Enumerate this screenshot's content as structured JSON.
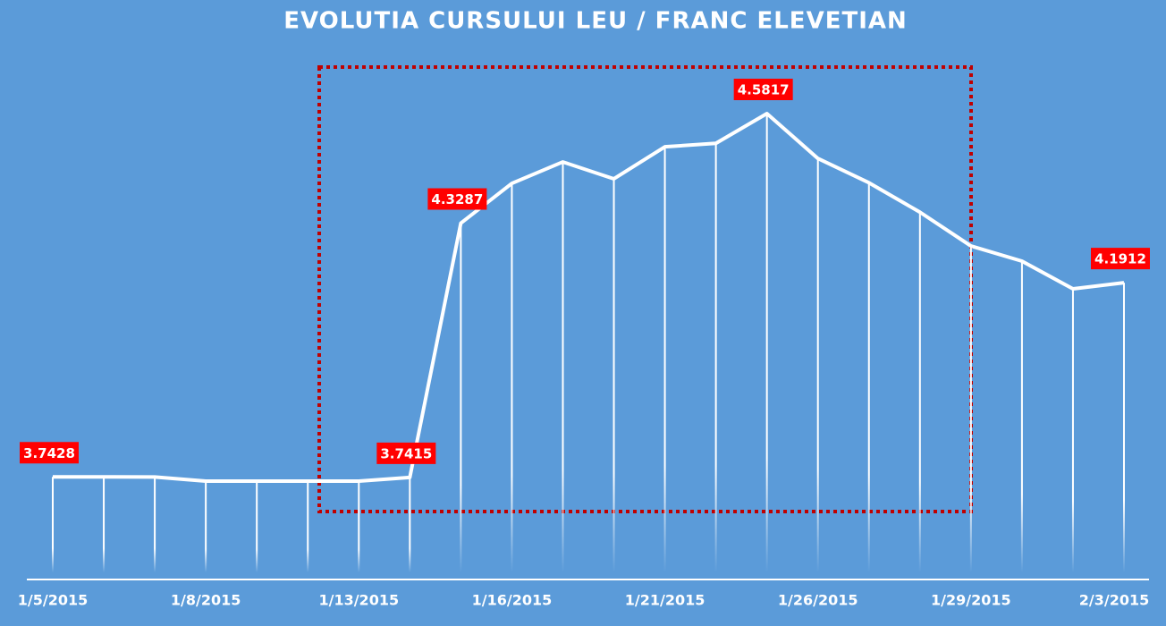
{
  "chart_data": {
    "type": "line",
    "title": "EVOLUTIA CURSULUI LEU / FRANC ELEVETIAN",
    "categories": [
      "1/5/2015",
      null,
      null,
      "1/8/2015",
      null,
      null,
      "1/13/2015",
      null,
      null,
      "1/16/2015",
      null,
      null,
      "1/21/2015",
      null,
      null,
      "1/26/2015",
      null,
      null,
      "1/29/2015",
      null,
      null,
      "2/3/2015"
    ],
    "series": [
      {
        "color": "#ffffff",
        "values": [
          3.7428,
          3.7428,
          3.7425,
          3.733,
          3.733,
          3.733,
          3.733,
          3.7415,
          4.3287,
          4.4205,
          4.47,
          4.431,
          4.505,
          4.513,
          4.5817,
          4.478,
          4.422,
          4.354,
          4.276,
          4.241,
          4.177,
          4.1912
        ]
      }
    ],
    "labeled_points": [
      0,
      7,
      8,
      14,
      21
    ],
    "label_color": "#ff0000"
  }
}
